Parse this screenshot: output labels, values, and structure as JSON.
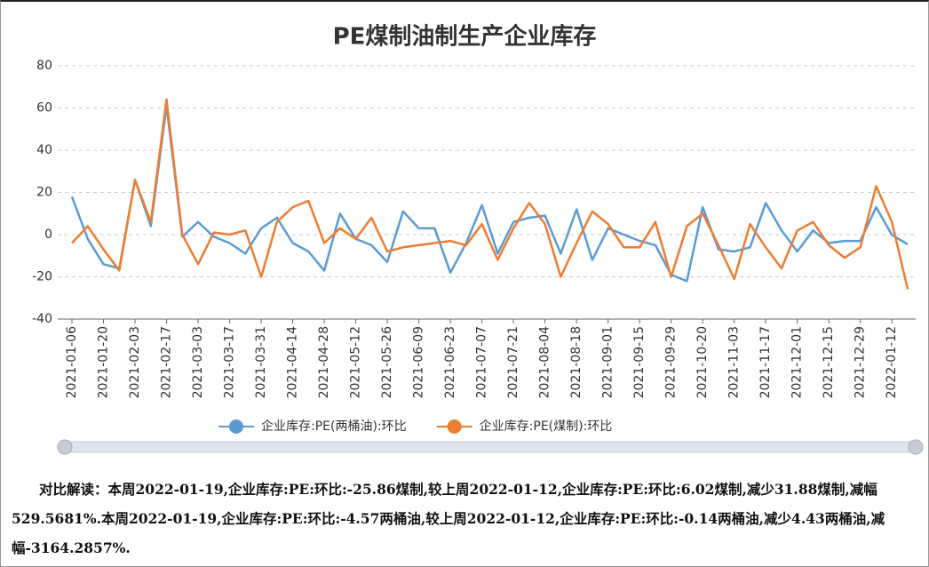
{
  "chart_data": {
    "type": "line",
    "title": "PE煤制油制生产企业库存",
    "categories": [
      "2021-01-06",
      null,
      "2021-01-20",
      null,
      "2021-02-03",
      null,
      "2021-02-17",
      null,
      "2021-03-03",
      null,
      "2021-03-17",
      null,
      "2021-03-31",
      null,
      "2021-04-14",
      null,
      "2021-04-28",
      null,
      "2021-05-12",
      null,
      "2021-05-26",
      null,
      "2021-06-09",
      null,
      "2021-06-23",
      null,
      "2021-07-07",
      null,
      "2021-07-21",
      null,
      "2021-08-04",
      null,
      "2021-08-18",
      null,
      "2021-09-01",
      null,
      "2021-09-15",
      null,
      "2021-09-29",
      null,
      "2021-10-20",
      null,
      "2021-11-03",
      null,
      "2021-11-17",
      null,
      "2021-12-01",
      null,
      "2021-12-15",
      null,
      "2021-12-29",
      null,
      "2022-01-12",
      null
    ],
    "series": [
      {
        "name": "企业库存:PE(两桶油):环比",
        "color": "#5b9bd5",
        "values": [
          18,
          -2,
          -14,
          -16,
          26,
          4,
          61,
          -1,
          6,
          -1,
          -4,
          -9,
          3,
          8,
          -4,
          -8,
          -17,
          10,
          -2,
          -5,
          -13,
          11,
          3,
          3,
          -18,
          -4,
          14,
          -9,
          6,
          8,
          9,
          -9,
          12,
          -12,
          3,
          0,
          -3,
          -5,
          -19,
          -22,
          13,
          -7,
          -8,
          -6,
          15,
          2,
          -8,
          2,
          -4,
          -3,
          -3,
          13,
          -0.14,
          -4.57
        ]
      },
      {
        "name": "企业库存:PE(煤制):环比",
        "color": "#ed7d31",
        "values": [
          -4,
          4,
          -7,
          -17,
          26,
          6,
          64,
          0,
          -14,
          1,
          0,
          2,
          -20,
          6,
          13,
          16,
          -4,
          3,
          -2,
          8,
          -8,
          -6,
          -5,
          -4,
          -3,
          -5,
          5,
          -12,
          3,
          15,
          5,
          -20,
          -4,
          11,
          5,
          -6,
          -6,
          6,
          -20,
          4,
          10,
          -5,
          -21,
          5,
          -6,
          -16,
          2,
          6,
          -5,
          -11,
          -6,
          23,
          6.02,
          -25.86
        ]
      }
    ],
    "ylim": [
      -40,
      80
    ],
    "yticks": [
      -40,
      -20,
      0,
      20,
      40,
      60,
      80
    ],
    "grid": true,
    "legend": "bottom",
    "analysis": "对比解读：本周2022-01-19,企业库存:PE:环比:-25.86煤制,较上周2022-01-12,企业库存:PE:环比:6.02煤制,减少31.88煤制,减幅529.5681%.本周2022-01-19,企业库存:PE:环比:-4.57两桶油,较上周2022-01-12,企业库存:PE:环比:-0.14两桶油,减少4.43两桶油,减幅-3164.2857%."
  }
}
